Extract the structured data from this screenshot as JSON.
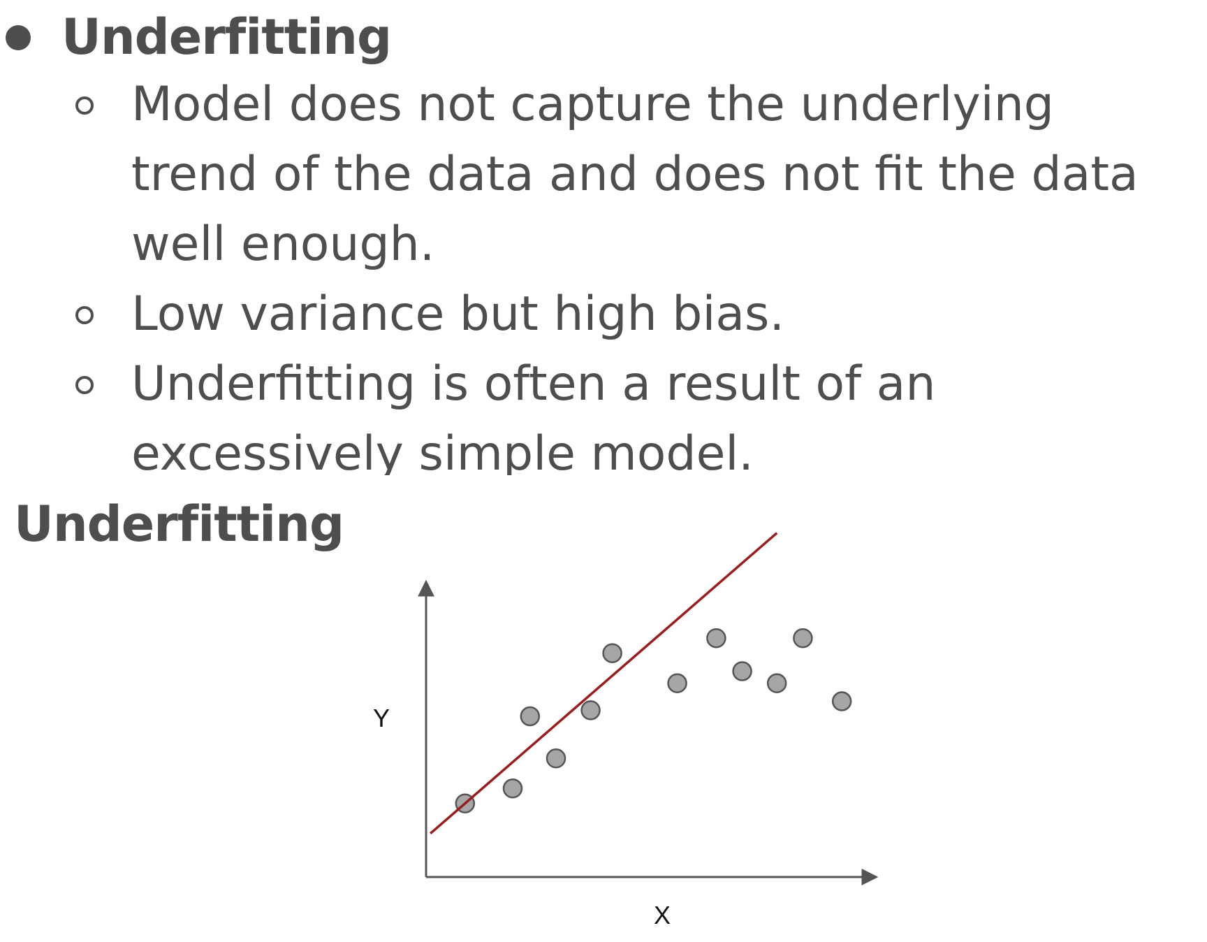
{
  "bullet_main": "Underfitting",
  "sub_bullets": [
    [
      "Model does not capture the underlying",
      "trend of the data and does not fit the data",
      "well enough."
    ],
    [
      "Low variance but high bias."
    ],
    [
      "Underfitting is often a result of an",
      "excessively simple model."
    ]
  ],
  "chart_title": "Underfitting",
  "chart_data": {
    "type": "scatter",
    "title": "Underfitting",
    "xlabel": "X",
    "ylabel": "Y",
    "xlim": [
      0,
      100
    ],
    "ylim": [
      0,
      100
    ],
    "grid": false,
    "points": [
      {
        "x": 9,
        "y": 21
      },
      {
        "x": 20,
        "y": 26
      },
      {
        "x": 24,
        "y": 50
      },
      {
        "x": 30,
        "y": 36
      },
      {
        "x": 38,
        "y": 52
      },
      {
        "x": 43,
        "y": 71
      },
      {
        "x": 58,
        "y": 61
      },
      {
        "x": 67,
        "y": 76
      },
      {
        "x": 73,
        "y": 65
      },
      {
        "x": 81,
        "y": 61
      },
      {
        "x": 87,
        "y": 76
      },
      {
        "x": 96,
        "y": 55
      }
    ],
    "fit_line": {
      "x1": 1,
      "y1": 11,
      "x2": 81,
      "y2": 111
    },
    "colors": {
      "points_fill": "#a6a6a6",
      "points_stroke": "#555555",
      "fit_line": "#9b1c1c",
      "axes": "#555555"
    }
  }
}
